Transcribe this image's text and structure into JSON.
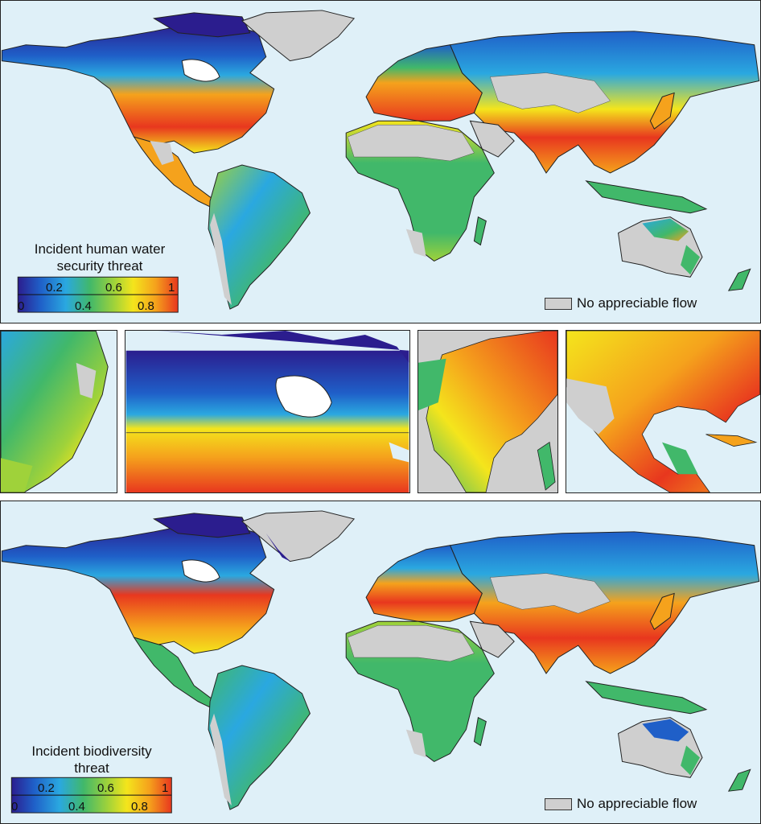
{
  "colors": {
    "ocean": "#dff0f8",
    "no_flow": "#cfcfcf",
    "scale": [
      "#2b1d8e",
      "#1f5fc8",
      "#2aa8e0",
      "#41b86a",
      "#9fd23a",
      "#f4e51c",
      "#f5a21c",
      "#e8371e"
    ]
  },
  "top_map": {
    "legend_title_line1": "Incident human water",
    "legend_title_line2": "security threat",
    "tick_top": [
      "0.2",
      "0.6",
      "1"
    ],
    "tick_bottom": [
      "0",
      "0.4",
      "0.8"
    ],
    "no_flow_label": "No appreciable flow"
  },
  "insets": [
    {
      "name": "Eastern South America"
    },
    {
      "name": "Canada and northern United States"
    },
    {
      "name": "Eastern China and Southeast Asia"
    },
    {
      "name": "Southern United States and Mexico"
    }
  ],
  "bottom_map": {
    "legend_title_line1": "Incident biodiversity",
    "legend_title_line2": "threat",
    "tick_top": [
      "0.2",
      "0.6",
      "1"
    ],
    "tick_bottom": [
      "0",
      "0.4",
      "0.8"
    ],
    "no_flow_label": "No appreciable flow"
  }
}
